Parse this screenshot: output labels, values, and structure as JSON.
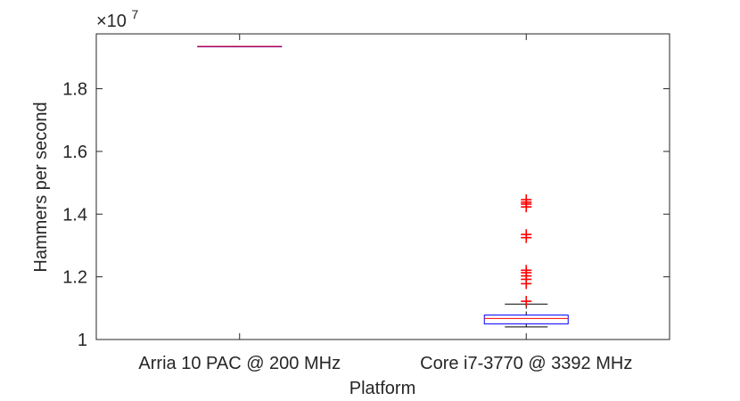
{
  "chart_data": {
    "type": "box",
    "title": "",
    "xlabel": "Platform",
    "ylabel": "Hammers per second",
    "scale_exponent_label": {
      "base": "×10",
      "exponent": "7"
    },
    "scale_factor": 10000000,
    "ylim": [
      1.0,
      1.975
    ],
    "yticks": [
      "1",
      "1.2",
      "1.4",
      "1.6",
      "1.8"
    ],
    "yticks_values": [
      1.0,
      1.2,
      1.4,
      1.6,
      1.8
    ],
    "grid": false,
    "categories": [
      "Arria 10 PAC @ 200 MHz",
      "Core i7-3770 @ 3392 MHz"
    ],
    "boxes": [
      {
        "category": "Arria 10 PAC @ 200 MHz",
        "whisker_low": 1.935,
        "q1": 1.935,
        "median": 1.935,
        "q3": 1.935,
        "whisker_high": 1.935,
        "outliers": []
      },
      {
        "category": "Core i7-3770 @ 3392 MHz",
        "whisker_low": 1.04,
        "q1": 1.05,
        "median": 1.067,
        "q3": 1.078,
        "whisker_high": 1.113,
        "outliers": [
          1.122,
          1.178,
          1.192,
          1.203,
          1.213,
          1.221,
          1.325,
          1.335,
          1.423,
          1.432,
          1.438,
          1.446
        ]
      }
    ],
    "colors": {
      "box": "#0000ff",
      "median": "#ff0000",
      "whisker": "#000000",
      "outlier": "#ff0000",
      "axis": "#262626"
    }
  }
}
